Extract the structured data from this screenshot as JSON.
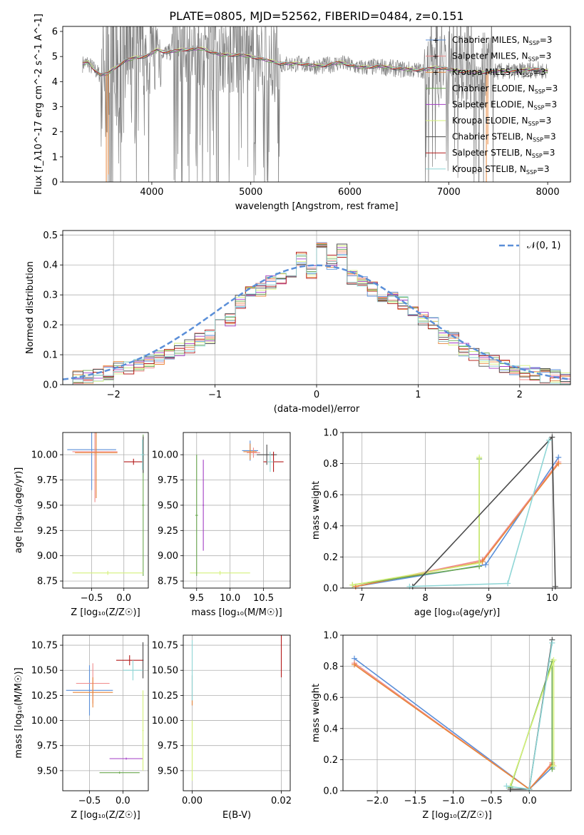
{
  "title": "PLATE=0805, MJD=52562, FIBERID=0484, z=0.151",
  "colors": {
    "chabrier_miles": "#5b8fd8",
    "salpeter_miles": "#f08c8c",
    "kroupa_miles": "#e8863a",
    "chabrier_elodie": "#6aa84f",
    "salpeter_elodie": "#a23cc4",
    "kroupa_elodie": "#d4f07a",
    "chabrier_stelib": "#4a4a4a",
    "salpeter_stelib": "#b31b1b",
    "kroupa_stelib": "#8fd6d6",
    "data": "#808080",
    "normal": "#5b8fd8"
  },
  "chart_data": [
    {
      "id": "spectrum",
      "type": "line",
      "xlabel": "wavelength [Angstrom, rest frame]",
      "ylabel": "Flux [f_λ10^-17 erg cm^-2 s^-1 A^-1]",
      "xlim": [
        3100,
        8230
      ],
      "ylim": [
        0,
        6.2
      ],
      "xticks": [
        "4000",
        "5000",
        "6000",
        "7000",
        "8000"
      ],
      "yticks": [
        "0",
        "1",
        "2",
        "3",
        "4",
        "5",
        "6"
      ],
      "legend": {
        "placement": "upper-right",
        "entries": [
          {
            "series": "chabrier_miles",
            "label": "Chabrier MILES, N",
            "sub": "SSP",
            "tail": "=3"
          },
          {
            "series": "salpeter_miles",
            "label": "Salpeter MILES, N",
            "sub": "SSP",
            "tail": "=3"
          },
          {
            "series": "kroupa_miles",
            "label": "Kroupa MILES, N",
            "sub": "SSP",
            "tail": "=3"
          },
          {
            "series": "chabrier_elodie",
            "label": "Chabrier ELODIE, N",
            "sub": "SSP",
            "tail": "=3"
          },
          {
            "series": "salpeter_elodie",
            "label": "Salpeter ELODIE, N",
            "sub": "SSP",
            "tail": "=3"
          },
          {
            "series": "kroupa_elodie",
            "label": "Kroupa ELODIE, N",
            "sub": "SSP",
            "tail": "=3"
          },
          {
            "series": "chabrier_stelib",
            "label": "Chabrier STELIB, N",
            "sub": "SSP",
            "tail": "=3"
          },
          {
            "series": "salpeter_stelib",
            "label": "Salpeter STELIB, N",
            "sub": "SSP",
            "tail": "=3"
          },
          {
            "series": "kroupa_stelib",
            "label": "Kroupa STELIB, N",
            "sub": "SSP",
            "tail": "=3"
          }
        ]
      },
      "continuum": {
        "x": [
          3300,
          3350,
          3400,
          3480,
          3550,
          3650,
          3750,
          3850,
          3950,
          4050,
          4150,
          4300,
          4500,
          4700,
          4900,
          5100,
          5300,
          5500,
          5700,
          5900,
          6100,
          6300,
          6500,
          6700,
          6900,
          7100,
          7300,
          7500,
          7700,
          7850,
          8000
        ],
        "y": [
          4.7,
          4.75,
          4.55,
          4.25,
          4.3,
          4.6,
          4.85,
          4.95,
          5.0,
          5.25,
          5.15,
          5.25,
          5.3,
          5.05,
          5.05,
          4.9,
          4.7,
          4.7,
          4.6,
          4.75,
          4.55,
          4.6,
          4.5,
          4.45,
          4.55,
          4.4,
          4.35,
          4.4,
          4.4,
          4.5,
          4.4
        ]
      }
    },
    {
      "id": "residuals",
      "type": "line",
      "xlabel": "(data-model)/error",
      "ylabel": "Normed distribution",
      "xlim": [
        -2.5,
        2.5
      ],
      "ylim": [
        0,
        0.515
      ],
      "xticks": [
        "−2",
        "−1",
        "0",
        "1",
        "2"
      ],
      "yticks": [
        "0.0",
        "0.1",
        "0.2",
        "0.3",
        "0.4",
        "0.5"
      ],
      "legend": {
        "placement": "upper-right",
        "label": "𝒩(0, 1)"
      },
      "hist_values": [
        0.02,
        0.025,
        0.03,
        0.035,
        0.04,
        0.06,
        0.055,
        0.07,
        0.08,
        0.09,
        0.1,
        0.12,
        0.13,
        0.15,
        0.16,
        0.2,
        0.22,
        0.28,
        0.31,
        0.32,
        0.34,
        0.35,
        0.36,
        0.42,
        0.38,
        0.46,
        0.41,
        0.45,
        0.36,
        0.35,
        0.32,
        0.3,
        0.29,
        0.27,
        0.25,
        0.22,
        0.2,
        0.16,
        0.15,
        0.12,
        0.1,
        0.085,
        0.075,
        0.06,
        0.05,
        0.04,
        0.035,
        0.03,
        0.025,
        0.02
      ]
    },
    {
      "id": "z-age",
      "type": "scatter",
      "xlabel": "Z [log₁₀(Z/Z☉)]",
      "ylabel": "age  [log₁₀(age/yr)]",
      "xlim": [
        -0.95,
        0.38
      ],
      "ylim": [
        8.68,
        10.22
      ],
      "xticks": [
        "−0.5",
        "0.0"
      ],
      "yticks": [
        "8.75",
        "9.00",
        "9.25",
        "9.50",
        "9.75",
        "10.00"
      ],
      "points": [
        {
          "series": "chabrier_miles",
          "x": -0.5,
          "y": 10.05,
          "xerr": 0.38,
          "yerr": 0.4
        },
        {
          "series": "salpeter_miles",
          "x": -0.45,
          "y": 10.03,
          "xerr": 0.35,
          "yerr": 0.5
        },
        {
          "series": "kroupa_miles",
          "x": -0.43,
          "y": 10.02,
          "xerr": 0.33,
          "yerr": 0.45
        },
        {
          "series": "chabrier_elodie",
          "x": 0.3,
          "y": 9.5,
          "xerr": 0.02,
          "yerr": 0.7
        },
        {
          "series": "kroupa_elodie",
          "x": -0.25,
          "y": 8.83,
          "xerr": 0.55,
          "yerr": 0.02
        },
        {
          "series": "chabrier_stelib",
          "x": 0.3,
          "y": 10.0,
          "xerr": 0.02,
          "yerr": 0.18
        },
        {
          "series": "salpeter_stelib",
          "x": 0.15,
          "y": 9.93,
          "xerr": 0.15,
          "yerr": 0.03
        },
        {
          "series": "kroupa_stelib",
          "x": 0.29,
          "y": 10.0,
          "xerr": 0.03,
          "yerr": 0.15
        }
      ]
    },
    {
      "id": "mass-age",
      "type": "scatter",
      "xlabel": "mass [log₁₀(M/M☉)]",
      "ylabel": "",
      "xlim": [
        9.3,
        10.9
      ],
      "ylim": [
        8.68,
        10.22
      ],
      "xticks": [
        "9.5",
        "10.0",
        "10.5"
      ],
      "yticks": [
        "8.75",
        "9.00",
        "9.25",
        "9.50",
        "9.75",
        "10.00"
      ],
      "points": [
        {
          "series": "chabrier_miles",
          "x": 10.3,
          "y": 10.04,
          "xerr": 0.12,
          "yerr": 0.1
        },
        {
          "series": "salpeter_miles",
          "x": 10.35,
          "y": 10.02,
          "xerr": 0.1,
          "yerr": 0.05
        },
        {
          "series": "kroupa_miles",
          "x": 10.3,
          "y": 10.03,
          "xerr": 0.1,
          "yerr": 0.08
        },
        {
          "series": "salpeter_elodie",
          "x": 9.6,
          "y": 9.5,
          "xerr": 0.01,
          "yerr": 0.45
        },
        {
          "series": "kroupa_elodie",
          "x": 9.85,
          "y": 8.83,
          "xerr": 0.45,
          "yerr": 0.02
        },
        {
          "series": "chabrier_elodie",
          "x": 9.5,
          "y": 9.4,
          "xerr": 0.02,
          "yerr": 0.6
        },
        {
          "series": "chabrier_stelib",
          "x": 10.55,
          "y": 10.0,
          "xerr": 0.15,
          "yerr": 0.1
        },
        {
          "series": "salpeter_stelib",
          "x": 10.65,
          "y": 9.93,
          "xerr": 0.15,
          "yerr": 0.1
        },
        {
          "series": "kroupa_stelib",
          "x": 10.6,
          "y": 9.93,
          "xerr": 0.05,
          "yerr": 0.1
        }
      ]
    },
    {
      "id": "age-weight",
      "type": "line",
      "xlabel": "age  [log₁₀(age/yr)]",
      "ylabel": "mass weight",
      "xlim": [
        6.7,
        10.3
      ],
      "ylim": [
        0,
        1.0
      ],
      "xticks": [
        "7",
        "8",
        "9",
        "10"
      ],
      "yticks": [
        "0.0",
        "0.2",
        "0.4",
        "0.6",
        "0.8",
        "1.0"
      ],
      "series": [
        {
          "name": "chabrier_miles",
          "x": [
            6.9,
            8.95,
            10.1
          ],
          "y": [
            0.01,
            0.15,
            0.84
          ]
        },
        {
          "name": "salpeter_miles",
          "x": [
            6.9,
            8.9,
            10.1
          ],
          "y": [
            0.01,
            0.18,
            0.81
          ]
        },
        {
          "name": "kroupa_miles",
          "x": [
            6.9,
            8.9,
            10.1
          ],
          "y": [
            0.01,
            0.17,
            0.8
          ]
        },
        {
          "name": "chabrier_elodie",
          "x": [
            6.85,
            8.85,
            8.85
          ],
          "y": [
            0.02,
            0.14,
            0.83
          ]
        },
        {
          "name": "kroupa_elodie",
          "x": [
            6.85,
            8.85,
            8.85
          ],
          "y": [
            0.02,
            0.16,
            0.84
          ]
        },
        {
          "name": "chabrier_stelib",
          "x": [
            7.8,
            10.0,
            10.05
          ],
          "y": [
            0.01,
            0.97,
            0.01
          ]
        },
        {
          "name": "kroupa_stelib",
          "x": [
            7.75,
            9.3,
            9.95
          ],
          "y": [
            0.01,
            0.03,
            0.95
          ]
        }
      ]
    },
    {
      "id": "z-mass",
      "type": "scatter",
      "xlabel": "Z [log₁₀(Z/Z☉)]",
      "ylabel": "mass [log₁₀(M/M☉)]",
      "xlim": [
        -0.9,
        0.38
      ],
      "ylim": [
        9.3,
        10.85
      ],
      "xticks": [
        "−0.5",
        "0.0"
      ],
      "yticks": [
        "9.50",
        "9.75",
        "10.00",
        "10.25",
        "10.50",
        "10.75"
      ],
      "points": [
        {
          "series": "chabrier_miles",
          "x": -0.5,
          "y": 10.3,
          "xerr": 0.35,
          "yerr": 0.25
        },
        {
          "series": "salpeter_miles",
          "x": -0.45,
          "y": 10.37,
          "xerr": 0.25,
          "yerr": 0.2
        },
        {
          "series": "kroupa_miles",
          "x": -0.45,
          "y": 10.28,
          "xerr": 0.3,
          "yerr": 0.15
        },
        {
          "series": "salpeter_elodie",
          "x": 0.05,
          "y": 9.62,
          "xerr": 0.25,
          "yerr": 0.01
        },
        {
          "series": "kroupa_elodie",
          "x": 0.3,
          "y": 9.9,
          "xerr": 0.01,
          "yerr": 0.4
        },
        {
          "series": "chabrier_elodie",
          "x": -0.05,
          "y": 9.48,
          "xerr": 0.3,
          "yerr": 0.01
        },
        {
          "series": "chabrier_stelib",
          "x": 0.3,
          "y": 10.6,
          "xerr": 0.01,
          "yerr": 0.18
        },
        {
          "series": "salpeter_stelib",
          "x": 0.1,
          "y": 10.6,
          "xerr": 0.2,
          "yerr": 0.05
        },
        {
          "series": "kroupa_stelib",
          "x": 0.15,
          "y": 10.5,
          "xerr": 0.15,
          "yerr": 0.1
        }
      ]
    },
    {
      "id": "ebv-mass",
      "type": "scatter",
      "xlabel": "E(B-V)",
      "ylabel": "",
      "xlim": [
        -0.002,
        0.022
      ],
      "ylim": [
        9.3,
        10.85
      ],
      "xticks": [
        "0.00",
        "0.02"
      ],
      "yticks": [
        "9.50",
        "9.75",
        "10.00",
        "10.25",
        "10.50",
        "10.75"
      ],
      "points": [
        {
          "series": "chabrier_miles",
          "x": 0.0,
          "y": 10.3,
          "xerr": 0,
          "yerr": 0.15
        },
        {
          "series": "kroupa_miles",
          "x": 0.0,
          "y": 10.3,
          "xerr": 0,
          "yerr": 0.15
        },
        {
          "series": "kroupa_elodie",
          "x": 0.0,
          "y": 9.7,
          "xerr": 0,
          "yerr": 0.3
        },
        {
          "series": "kroupa_stelib",
          "x": 0.0,
          "y": 10.5,
          "xerr": 0,
          "yerr": 0.3
        },
        {
          "series": "salpeter_stelib",
          "x": 0.02,
          "y": 10.65,
          "xerr": 0,
          "yerr": 0.22
        }
      ]
    },
    {
      "id": "z-weight",
      "type": "line",
      "xlabel": "Z [log₁₀(Z/Z☉)]",
      "ylabel": "mass weight",
      "xlim": [
        -2.45,
        0.55
      ],
      "ylim": [
        0,
        1.0
      ],
      "xticks": [
        "−2.0",
        "−1.5",
        "−1.0",
        "−0.5",
        "0.0"
      ],
      "yticks": [
        "0.0",
        "0.2",
        "0.4",
        "0.6",
        "0.8",
        "1.0"
      ],
      "series": [
        {
          "name": "chabrier_miles",
          "x": [
            -2.3,
            0.0,
            0.3
          ],
          "y": [
            0.85,
            0.01,
            0.15
          ]
        },
        {
          "name": "salpeter_miles",
          "x": [
            -2.3,
            0.0,
            0.3
          ],
          "y": [
            0.82,
            0.01,
            0.18
          ]
        },
        {
          "name": "kroupa_miles",
          "x": [
            -2.3,
            0.0,
            0.3
          ],
          "y": [
            0.81,
            0.01,
            0.17
          ]
        },
        {
          "name": "chabrier_elodie",
          "x": [
            -0.25,
            0.3,
            0.3
          ],
          "y": [
            0.02,
            0.83,
            0.14
          ]
        },
        {
          "name": "kroupa_elodie",
          "x": [
            -0.25,
            0.32,
            0.32
          ],
          "y": [
            0.03,
            0.84,
            0.16
          ]
        },
        {
          "name": "chabrier_stelib",
          "x": [
            -0.25,
            0.0,
            0.3
          ],
          "y": [
            0.01,
            0.01,
            0.97
          ]
        },
        {
          "name": "kroupa_stelib",
          "x": [
            -0.3,
            0.0,
            0.3
          ],
          "y": [
            0.03,
            0.01,
            0.95
          ]
        }
      ]
    }
  ]
}
